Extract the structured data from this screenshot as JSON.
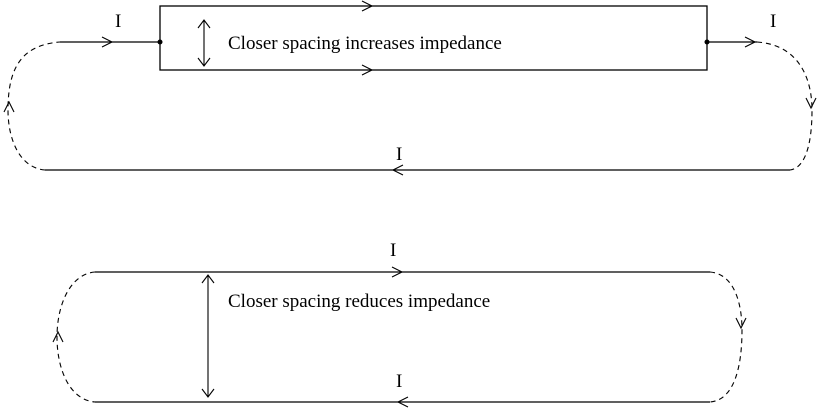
{
  "diagrams": [
    {
      "caption": "Closer spacing increases impedance",
      "current_labels": [
        "I",
        "I",
        "I"
      ]
    },
    {
      "caption": "Closer spacing reduces impedance",
      "current_labels": [
        "I",
        "I"
      ]
    }
  ]
}
